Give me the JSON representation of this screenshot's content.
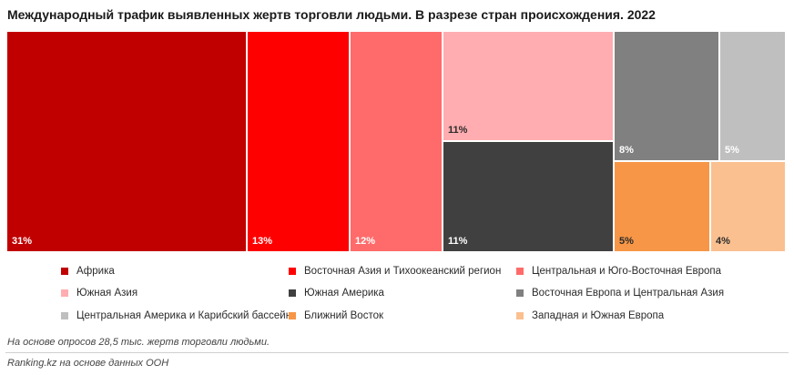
{
  "chart_data": {
    "type": "treemap",
    "title": "Международный трафик выявленных жертв торговли людьми. В разрезе стран происхождения. 2022",
    "unit": "%",
    "series": [
      {
        "name": "Африка",
        "value": 31,
        "label": "31%",
        "color": "#c00000"
      },
      {
        "name": "Восточная Азия и Тихоокеанский регион",
        "value": 13,
        "label": "13%",
        "color": "#ff0000"
      },
      {
        "name": "Центральная и Юго-Восточная Европа",
        "value": 12,
        "label": "12%",
        "color": "#ff6b6b"
      },
      {
        "name": "Южная Азия",
        "value": 11,
        "label": "11%",
        "color": "#ffadb0"
      },
      {
        "name": "Южная Америка",
        "value": 11,
        "label": "11%",
        "color": "#404040"
      },
      {
        "name": "Восточная Европа и Центральная Азия",
        "value": 8,
        "label": "8%",
        "color": "#808080"
      },
      {
        "name": "Центральная Америка и Карибский бассейн",
        "value": 5,
        "label": "5%",
        "color": "#bfbfbf"
      },
      {
        "name": "Ближний Восток",
        "value": 5,
        "label": "5%",
        "color": "#f79646"
      },
      {
        "name": "Западная и Южная Европа",
        "value": 4,
        "label": "4%",
        "color": "#fac090"
      }
    ],
    "legend_position": "bottom"
  },
  "footer": {
    "note": "На основе опросов 28,5 тыс. жертв торговли людьми.",
    "source": "Ranking.kz на основе данных ООН"
  }
}
